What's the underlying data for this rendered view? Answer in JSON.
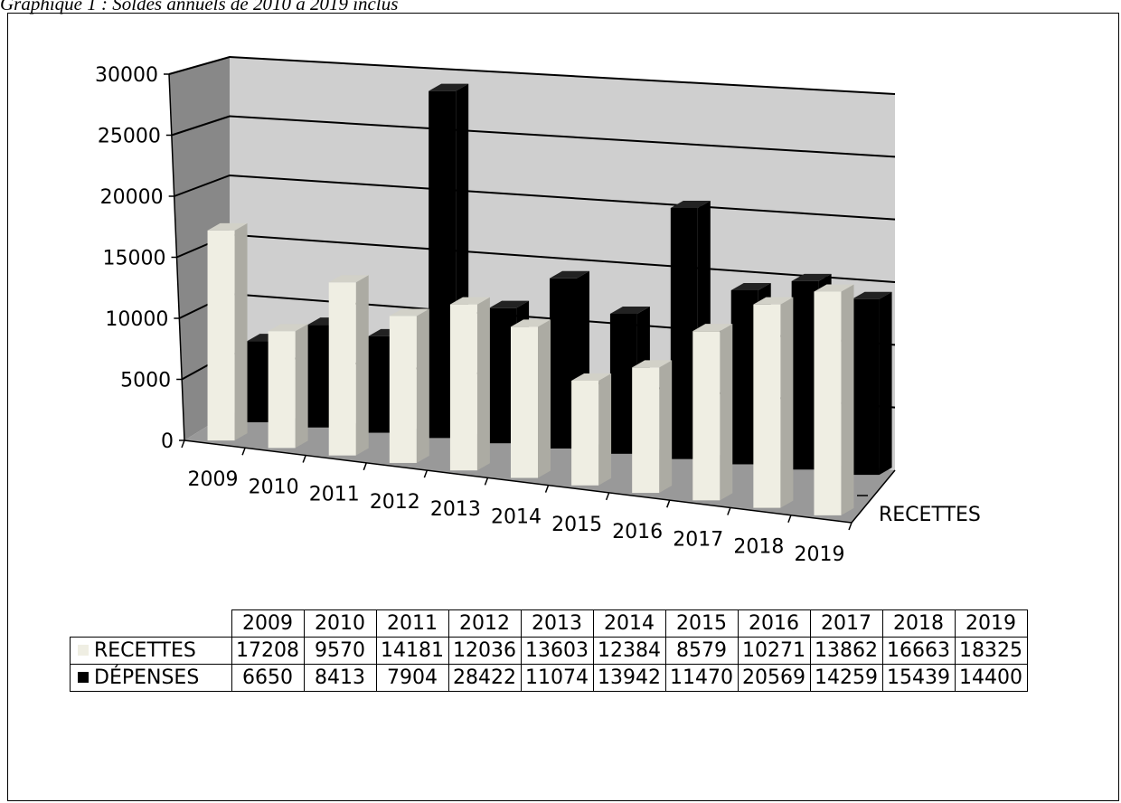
{
  "caption": "Graphique 1 : Soldes annuels de 2010 à 2019 inclus",
  "chart_data": {
    "type": "bar",
    "categories": [
      "2009",
      "2010",
      "2011",
      "2012",
      "2013",
      "2014",
      "2015",
      "2016",
      "2017",
      "2018",
      "2019"
    ],
    "series": [
      {
        "name": "RECETTES",
        "color": "#efeee3",
        "values": [
          17208,
          9570,
          14181,
          12036,
          13603,
          12384,
          8579,
          10271,
          13862,
          16663,
          18325
        ]
      },
      {
        "name": "DÉPENSES",
        "color": "#000000",
        "values": [
          6650,
          8413,
          7904,
          28422,
          11074,
          13942,
          11470,
          20569,
          14259,
          15439,
          14400
        ]
      }
    ],
    "ylim": [
      0,
      30000
    ],
    "yticks": [
      "0",
      "5000",
      "10000",
      "15000",
      "20000",
      "25000",
      "30000"
    ],
    "depth_axis_label": "RECETTES",
    "grid": true,
    "legend": "data-table"
  }
}
